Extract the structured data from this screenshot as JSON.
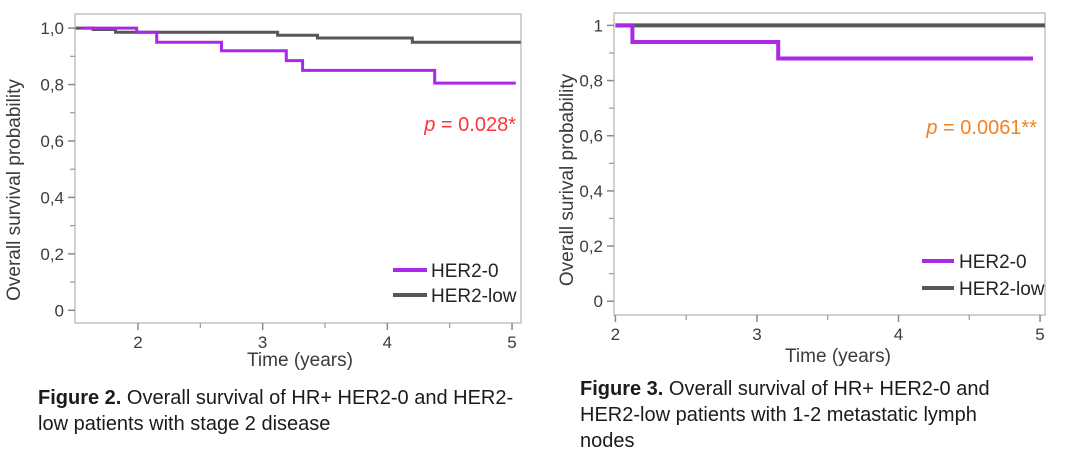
{
  "chart_data": [
    {
      "type": "step-line",
      "subtype": "kaplan-meier-survival",
      "figure": "Figure 2",
      "y_label": "Overall survival probability",
      "x_label": "Time (years)",
      "p_prefix": "p",
      "p_rest": " = 0.028*",
      "p_color": "#ff3434",
      "xlim": [
        1.495,
        5.072
      ],
      "ylim": [
        -0.045,
        1.05
      ],
      "x_ticks": [
        {
          "label": "2",
          "value": 2
        },
        {
          "label": "3",
          "value": 3
        },
        {
          "label": "4",
          "value": 4
        },
        {
          "label": "5",
          "value": 5
        }
      ],
      "x_minor": [
        2.5,
        3.5,
        4.5
      ],
      "y_ticks": [
        {
          "label": "1,0",
          "value": 1.0
        },
        {
          "label": "0,8",
          "value": 0.8
        },
        {
          "label": "0,6",
          "value": 0.6
        },
        {
          "label": "0,4",
          "value": 0.4
        },
        {
          "label": "0,2",
          "value": 0.2
        },
        {
          "label": "0",
          "value": 0
        }
      ],
      "y_minor": [
        0.9,
        0.7,
        0.5,
        0.3,
        0.1
      ],
      "grid": false,
      "legend_position": "inside-bottom-right",
      "series": [
        {
          "name": "HER2-0",
          "color": "#aa29e8",
          "x": [
            1.55,
            1.99,
            2.15,
            2.67,
            3.19,
            3.32,
            4.38,
            5.03
          ],
          "y": [
            1.0,
            0.985,
            0.95,
            0.92,
            0.885,
            0.85,
            0.805,
            0.805
          ]
        },
        {
          "name": "HER2-low",
          "color": "#57575a",
          "x": [
            1.5,
            1.64,
            1.82,
            3.12,
            3.44,
            4.2,
            5.07
          ],
          "y": [
            1.0,
            0.995,
            0.985,
            0.975,
            0.965,
            0.95,
            0.95
          ]
        }
      ],
      "caption_bold": "Figure 2.",
      "caption_rest": " Overall survival of HR+ HER2-0 and HER2-low patients with stage 2 disease"
    },
    {
      "type": "step-line",
      "subtype": "kaplan-meier-survival",
      "figure": "Figure 3",
      "y_label": "Overall surival probability",
      "x_label": "Time (years)",
      "p_prefix": "p",
      "p_rest": " = 0.0061**",
      "p_color": "#f5801f",
      "xlim": [
        1.99,
        5.035
      ],
      "ylim": [
        -0.05,
        1.045
      ],
      "x_ticks": [
        {
          "label": "2",
          "value": 2
        },
        {
          "label": "3",
          "value": 3
        },
        {
          "label": "4",
          "value": 4
        },
        {
          "label": "5",
          "value": 5
        }
      ],
      "x_minor": [
        2.5,
        3.5,
        4.5
      ],
      "y_ticks": [
        {
          "label": "1",
          "value": 1.0
        },
        {
          "label": "0,8",
          "value": 0.8
        },
        {
          "label": "0,6",
          "value": 0.6
        },
        {
          "label": "0,4",
          "value": 0.4
        },
        {
          "label": "0,2",
          "value": 0.2
        },
        {
          "label": "0",
          "value": 0
        }
      ],
      "y_minor": [
        0.9,
        0.7,
        0.5,
        0.3,
        0.1
      ],
      "grid": false,
      "legend_position": "inside-bottom-right",
      "series": [
        {
          "name": "HER2-0",
          "color": "#aa29e8",
          "x": [
            2.0,
            2.12,
            3.15,
            4.95
          ],
          "y": [
            1.0,
            0.94,
            0.88,
            0.88
          ]
        },
        {
          "name": "HER2-low",
          "color": "#57575a",
          "x": [
            2.0,
            5.035
          ],
          "y": [
            1.0,
            1.0
          ]
        }
      ],
      "caption_bold": "Figure 3.",
      "caption_rest": " Overall survival of HR+ HER2-0 and HER2-low patients with 1-2 metastatic lymph nodes"
    }
  ]
}
